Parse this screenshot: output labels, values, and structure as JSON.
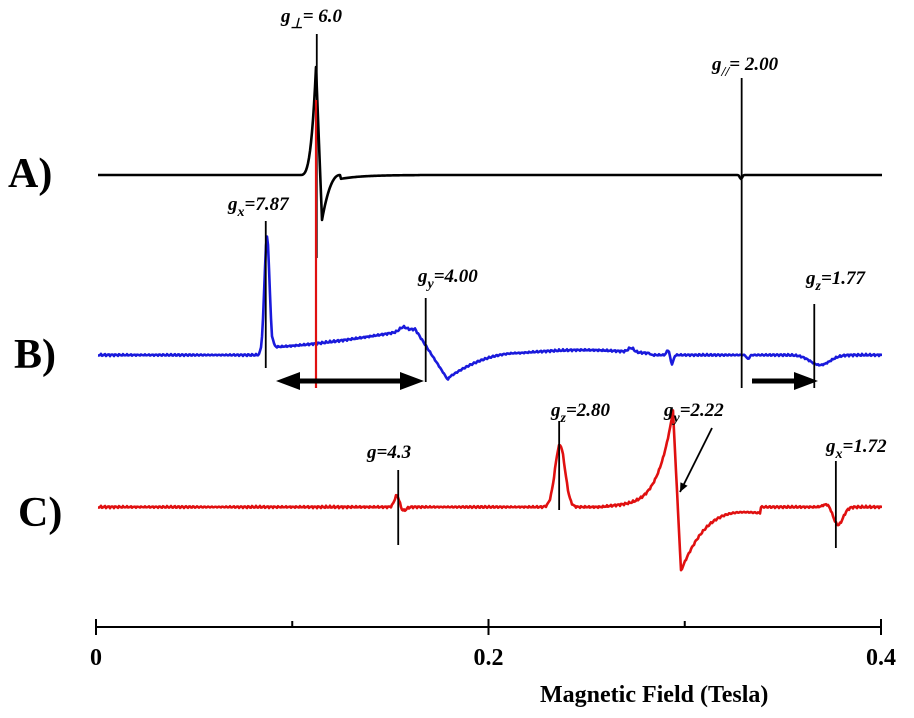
{
  "chart_data": {
    "type": "line",
    "xlabel": "Magnetic Field (Tesla)",
    "xlim": [
      0,
      0.4
    ],
    "x_ticks": [
      {
        "value": 0,
        "label": "0"
      },
      {
        "value": 0.2,
        "label": "0.2"
      },
      {
        "value": 0.4,
        "label": "0.4"
      }
    ],
    "x_minor_ticks": [
      0.1,
      0.3
    ],
    "panels": [
      {
        "id": "A",
        "label": "A)",
        "color": "#000000",
        "markers": [
          {
            "field": 0.1125,
            "g": "g",
            "sub": "⊥",
            "rest": "= 6.0"
          },
          {
            "field": 0.329,
            "g": "g",
            "sub": "//",
            "rest": "= 2.00"
          }
        ]
      },
      {
        "id": "B",
        "label": "B)",
        "color": "#1a1adc",
        "markers": [
          {
            "field": 0.0865,
            "g": "g",
            "sub": "x",
            "rest": "=7.87"
          },
          {
            "field": 0.168,
            "g": "g",
            "sub": "y",
            "rest": "=4.00"
          },
          {
            "field": 0.366,
            "g": "g",
            "sub": "z",
            "rest": "=1.77"
          }
        ]
      },
      {
        "id": "C",
        "label": "C)",
        "color": "#e01010",
        "markers": [
          {
            "field": 0.154,
            "g": "g",
            "sub": "",
            "rest": "=4.3"
          },
          {
            "field": 0.236,
            "g": "g",
            "sub": "z",
            "rest": "=2.80"
          },
          {
            "field": 0.296,
            "g": "g",
            "sub": "y",
            "rest": "=2.22"
          },
          {
            "field": 0.377,
            "g": "g",
            "sub": "x",
            "rest": "=1.72"
          }
        ]
      }
    ]
  }
}
